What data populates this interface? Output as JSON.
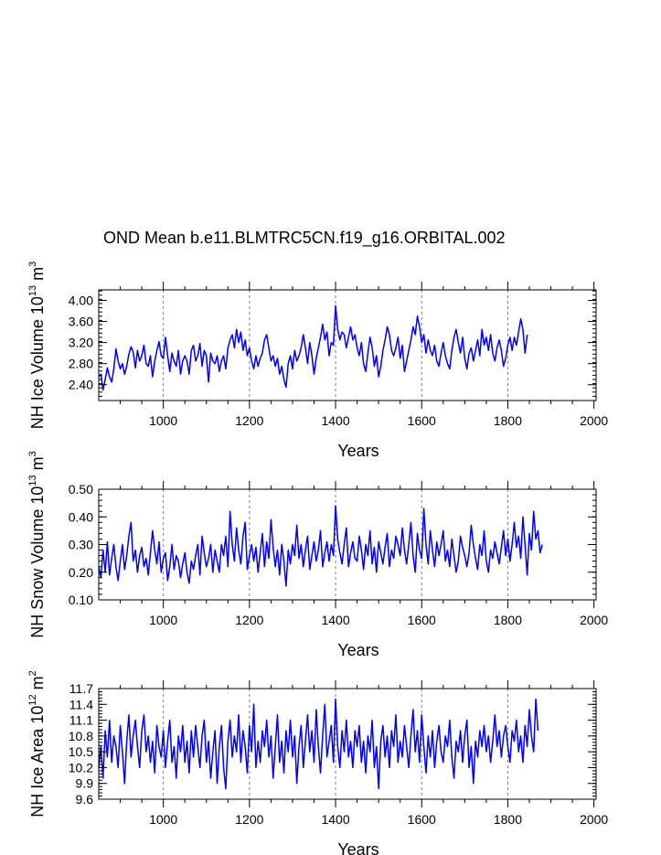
{
  "title": "OND Mean b.e11.BLMTRC5CN.f19_g16.ORBITAL.002",
  "colors": {
    "line": "#0000ff",
    "axis": "#000000",
    "grid": "#808080"
  },
  "chart_data": [
    {
      "type": "line",
      "xlabel": "Years",
      "ylabel_text": "NH Ice Volume 10",
      "ylabel_exp": "13",
      "ylabel_unit": " m",
      "ylabel_unit_exp": "3",
      "xlim": [
        850,
        2005
      ],
      "ylim": [
        2.1,
        4.2
      ],
      "x_ticks": [
        1000,
        1200,
        1400,
        1600,
        1800,
        2000
      ],
      "x_tick_labels": [
        "1000",
        "1200",
        "1400",
        "1600",
        "1800",
        "2000"
      ],
      "y_ticks": [
        2.4,
        2.8,
        3.2,
        3.6,
        4.0
      ],
      "y_tick_labels": [
        "2.40",
        "2.80",
        "3.20",
        "3.60",
        "4.00"
      ],
      "gridlines_x": [
        1000,
        1200,
        1400,
        1600,
        1800
      ],
      "series": {
        "name": "NH Ice Volume",
        "x_start": 850,
        "x_step": 5,
        "values": [
          2.55,
          2.6,
          2.3,
          2.5,
          2.72,
          2.55,
          2.45,
          2.7,
          3.08,
          2.85,
          2.7,
          2.8,
          2.6,
          2.75,
          2.98,
          3.12,
          3.02,
          2.72,
          3.05,
          2.85,
          2.95,
          3.15,
          2.8,
          2.75,
          2.95,
          2.55,
          2.85,
          3.05,
          3.22,
          2.95,
          2.9,
          3.3,
          2.95,
          2.65,
          3.0,
          2.85,
          2.75,
          3.05,
          2.6,
          2.85,
          2.95,
          2.85,
          2.6,
          3.05,
          3.15,
          2.85,
          2.95,
          3.18,
          2.75,
          3.05,
          2.95,
          2.45,
          3.0,
          2.85,
          2.8,
          2.95,
          2.65,
          2.85,
          2.95,
          2.7,
          3.1,
          3.25,
          3.35,
          3.1,
          3.45,
          3.2,
          3.4,
          3.05,
          3.25,
          2.95,
          3.1,
          2.85,
          2.7,
          2.95,
          2.75,
          2.9,
          3.0,
          3.25,
          3.35,
          3.1,
          2.85,
          2.95,
          2.75,
          2.9,
          2.6,
          2.75,
          2.5,
          2.35,
          2.8,
          2.95,
          2.7,
          3.05,
          2.85,
          2.95,
          3.1,
          3.35,
          3.1,
          2.8,
          3.2,
          2.95,
          2.6,
          2.9,
          3.1,
          3.3,
          3.55,
          3.25,
          3.4,
          2.95,
          3.2,
          3.15,
          3.9,
          3.45,
          3.25,
          3.4,
          3.35,
          3.1,
          3.3,
          3.5,
          3.25,
          3.35,
          3.1,
          2.95,
          3.2,
          2.8,
          2.65,
          3.0,
          3.3,
          3.1,
          2.75,
          2.95,
          2.55,
          2.75,
          3.05,
          3.25,
          3.5,
          3.35,
          3.05,
          2.95,
          3.1,
          3.3,
          2.9,
          3.15,
          2.65,
          2.85,
          3.05,
          3.25,
          3.5,
          3.35,
          3.7,
          3.5,
          3.2,
          3.35,
          3.0,
          3.25,
          3.05,
          2.95,
          3.15,
          2.85,
          2.75,
          3.0,
          3.2,
          2.95,
          2.8,
          2.7,
          3.05,
          3.3,
          3.45,
          3.2,
          3.0,
          3.3,
          2.9,
          2.7,
          3.0,
          3.1,
          2.85,
          3.05,
          3.25,
          2.95,
          3.45,
          3.15,
          3.3,
          3.05,
          3.35,
          3.0,
          2.85,
          3.1,
          3.25,
          3.05,
          2.75,
          2.9,
          3.15,
          3.3,
          3.05,
          3.3,
          3.15,
          3.4,
          3.65,
          3.45,
          3.0,
          3.35
        ]
      }
    },
    {
      "type": "line",
      "xlabel": "Years",
      "ylabel_text": "NH Snow Volume 10",
      "ylabel_exp": "13",
      "ylabel_unit": " m",
      "ylabel_unit_exp": "3",
      "xlim": [
        850,
        2005
      ],
      "ylim": [
        0.1,
        0.5
      ],
      "x_ticks": [
        1000,
        1200,
        1400,
        1600,
        1800,
        2000
      ],
      "x_tick_labels": [
        "1000",
        "1200",
        "1400",
        "1600",
        "1800",
        "2000"
      ],
      "y_ticks": [
        0.1,
        0.2,
        0.3,
        0.4,
        0.5
      ],
      "y_tick_labels": [
        "0.10",
        "0.20",
        "0.30",
        "0.40",
        "0.50"
      ],
      "gridlines_x": [
        1000,
        1200,
        1400,
        1600,
        1800
      ],
      "series": {
        "name": "NH Snow Volume",
        "x_start": 850,
        "x_step": 5,
        "values": [
          0.22,
          0.18,
          0.28,
          0.2,
          0.31,
          0.19,
          0.25,
          0.3,
          0.22,
          0.17,
          0.24,
          0.3,
          0.21,
          0.26,
          0.33,
          0.38,
          0.24,
          0.28,
          0.2,
          0.26,
          0.29,
          0.22,
          0.25,
          0.19,
          0.27,
          0.35,
          0.28,
          0.23,
          0.31,
          0.2,
          0.25,
          0.27,
          0.17,
          0.22,
          0.3,
          0.21,
          0.26,
          0.24,
          0.18,
          0.23,
          0.27,
          0.2,
          0.16,
          0.24,
          0.21,
          0.26,
          0.3,
          0.19,
          0.33,
          0.27,
          0.22,
          0.25,
          0.3,
          0.2,
          0.28,
          0.24,
          0.2,
          0.3,
          0.26,
          0.33,
          0.22,
          0.42,
          0.3,
          0.24,
          0.36,
          0.28,
          0.23,
          0.33,
          0.38,
          0.21,
          0.26,
          0.3,
          0.24,
          0.29,
          0.2,
          0.27,
          0.34,
          0.22,
          0.31,
          0.25,
          0.39,
          0.29,
          0.22,
          0.28,
          0.19,
          0.3,
          0.24,
          0.15,
          0.28,
          0.23,
          0.3,
          0.26,
          0.37,
          0.25,
          0.3,
          0.22,
          0.28,
          0.33,
          0.21,
          0.26,
          0.31,
          0.24,
          0.28,
          0.35,
          0.22,
          0.27,
          0.31,
          0.24,
          0.3,
          0.26,
          0.44,
          0.32,
          0.27,
          0.23,
          0.3,
          0.36,
          0.22,
          0.27,
          0.31,
          0.25,
          0.24,
          0.33,
          0.28,
          0.21,
          0.3,
          0.26,
          0.35,
          0.23,
          0.29,
          0.2,
          0.31,
          0.27,
          0.23,
          0.29,
          0.34,
          0.22,
          0.28,
          0.25,
          0.33,
          0.3,
          0.26,
          0.36,
          0.28,
          0.23,
          0.3,
          0.38,
          0.26,
          0.2,
          0.34,
          0.28,
          0.25,
          0.43,
          0.3,
          0.23,
          0.35,
          0.28,
          0.22,
          0.31,
          0.26,
          0.3,
          0.35,
          0.24,
          0.28,
          0.22,
          0.32,
          0.26,
          0.2,
          0.24,
          0.33,
          0.29,
          0.26,
          0.22,
          0.27,
          0.37,
          0.3,
          0.25,
          0.21,
          0.3,
          0.26,
          0.35,
          0.24,
          0.2,
          0.28,
          0.25,
          0.31,
          0.27,
          0.23,
          0.29,
          0.35,
          0.26,
          0.32,
          0.24,
          0.3,
          0.38,
          0.29,
          0.33,
          0.25,
          0.4,
          0.3,
          0.19,
          0.34,
          0.28,
          0.42,
          0.32,
          0.35,
          0.27,
          0.3
        ]
      }
    },
    {
      "type": "line",
      "xlabel": "Years",
      "ylabel_text": "NH Ice Area 10",
      "ylabel_exp": "12",
      "ylabel_unit": " m",
      "ylabel_unit_exp": "2",
      "xlim": [
        850,
        2005
      ],
      "ylim": [
        9.6,
        11.7
      ],
      "x_ticks": [
        1000,
        1200,
        1400,
        1600,
        1800,
        2000
      ],
      "x_tick_labels": [
        "1000",
        "1200",
        "1400",
        "1600",
        "1800",
        "2000"
      ],
      "y_ticks": [
        9.6,
        9.9,
        10.2,
        10.5,
        10.8,
        11.1,
        11.4,
        11.7
      ],
      "y_tick_labels": [
        "9.6",
        "9.9",
        "10.2",
        "10.5",
        "10.8",
        "11.1",
        "11.4",
        "11.7"
      ],
      "gridlines_x": [
        1000,
        1200,
        1400,
        1600,
        1800
      ],
      "series": {
        "name": "NH Ice Area",
        "x_start": 850,
        "x_step": 5,
        "values": [
          10.2,
          10.6,
          10.0,
          10.9,
          10.4,
          11.1,
          10.3,
          10.8,
          10.6,
          10.2,
          11.0,
          10.5,
          9.9,
          10.7,
          11.2,
          10.4,
          10.8,
          11.1,
          10.6,
          10.2,
          10.9,
          11.2,
          10.5,
          10.8,
          10.3,
          10.7,
          10.1,
          11.0,
          10.6,
          10.4,
          10.9,
          10.2,
          10.7,
          11.1,
          10.3,
          10.6,
          10.0,
          10.8,
          10.5,
          11.0,
          10.3,
          10.7,
          10.1,
          10.9,
          10.4,
          11.0,
          10.6,
          10.2,
          10.8,
          11.1,
          10.3,
          10.7,
          10.0,
          10.5,
          10.9,
          9.9,
          10.6,
          11.0,
          10.2,
          9.8,
          10.7,
          11.1,
          10.4,
          10.8,
          10.5,
          11.2,
          10.3,
          10.9,
          10.6,
          10.1,
          11.0,
          10.5,
          11.4,
          10.2,
          10.7,
          10.3,
          10.9,
          10.6,
          11.1,
          10.4,
          10.8,
          10.0,
          10.6,
          11.2,
          10.3,
          10.7,
          10.1,
          10.9,
          10.5,
          11.1,
          10.4,
          10.8,
          9.9,
          10.6,
          11.0,
          10.2,
          10.7,
          11.2,
          10.5,
          10.9,
          10.3,
          11.3,
          10.6,
          10.1,
          10.8,
          11.4,
          10.4,
          10.7,
          11.0,
          10.3,
          11.5,
          10.6,
          10.2,
          10.9,
          10.5,
          11.1,
          10.4,
          10.7,
          10.2,
          10.9,
          10.6,
          11.0,
          10.3,
          10.7,
          10.1,
          10.8,
          10.5,
          11.1,
          10.2,
          10.6,
          9.8,
          10.7,
          11.0,
          10.4,
          10.8,
          10.2,
          10.9,
          10.6,
          11.2,
          10.3,
          10.7,
          10.4,
          11.0,
          10.6,
          10.2,
          10.8,
          11.3,
          10.5,
          10.9,
          10.3,
          11.2,
          10.6,
          10.1,
          10.8,
          10.4,
          10.9,
          10.2,
          10.7,
          11.0,
          10.5,
          10.3,
          10.8,
          10.6,
          11.1,
          10.4,
          10.0,
          10.7,
          10.5,
          10.9,
          10.3,
          10.8,
          11.1,
          10.2,
          10.6,
          9.9,
          10.7,
          10.4,
          10.9,
          10.6,
          11.0,
          10.5,
          10.8,
          10.3,
          10.7,
          11.2,
          10.6,
          10.9,
          10.4,
          10.8,
          11.0,
          10.6,
          10.3,
          10.9,
          10.7,
          11.1,
          10.5,
          10.8,
          10.3,
          11.0,
          10.6,
          11.3,
          10.8,
          10.5,
          11.5,
          10.9
        ]
      }
    }
  ]
}
